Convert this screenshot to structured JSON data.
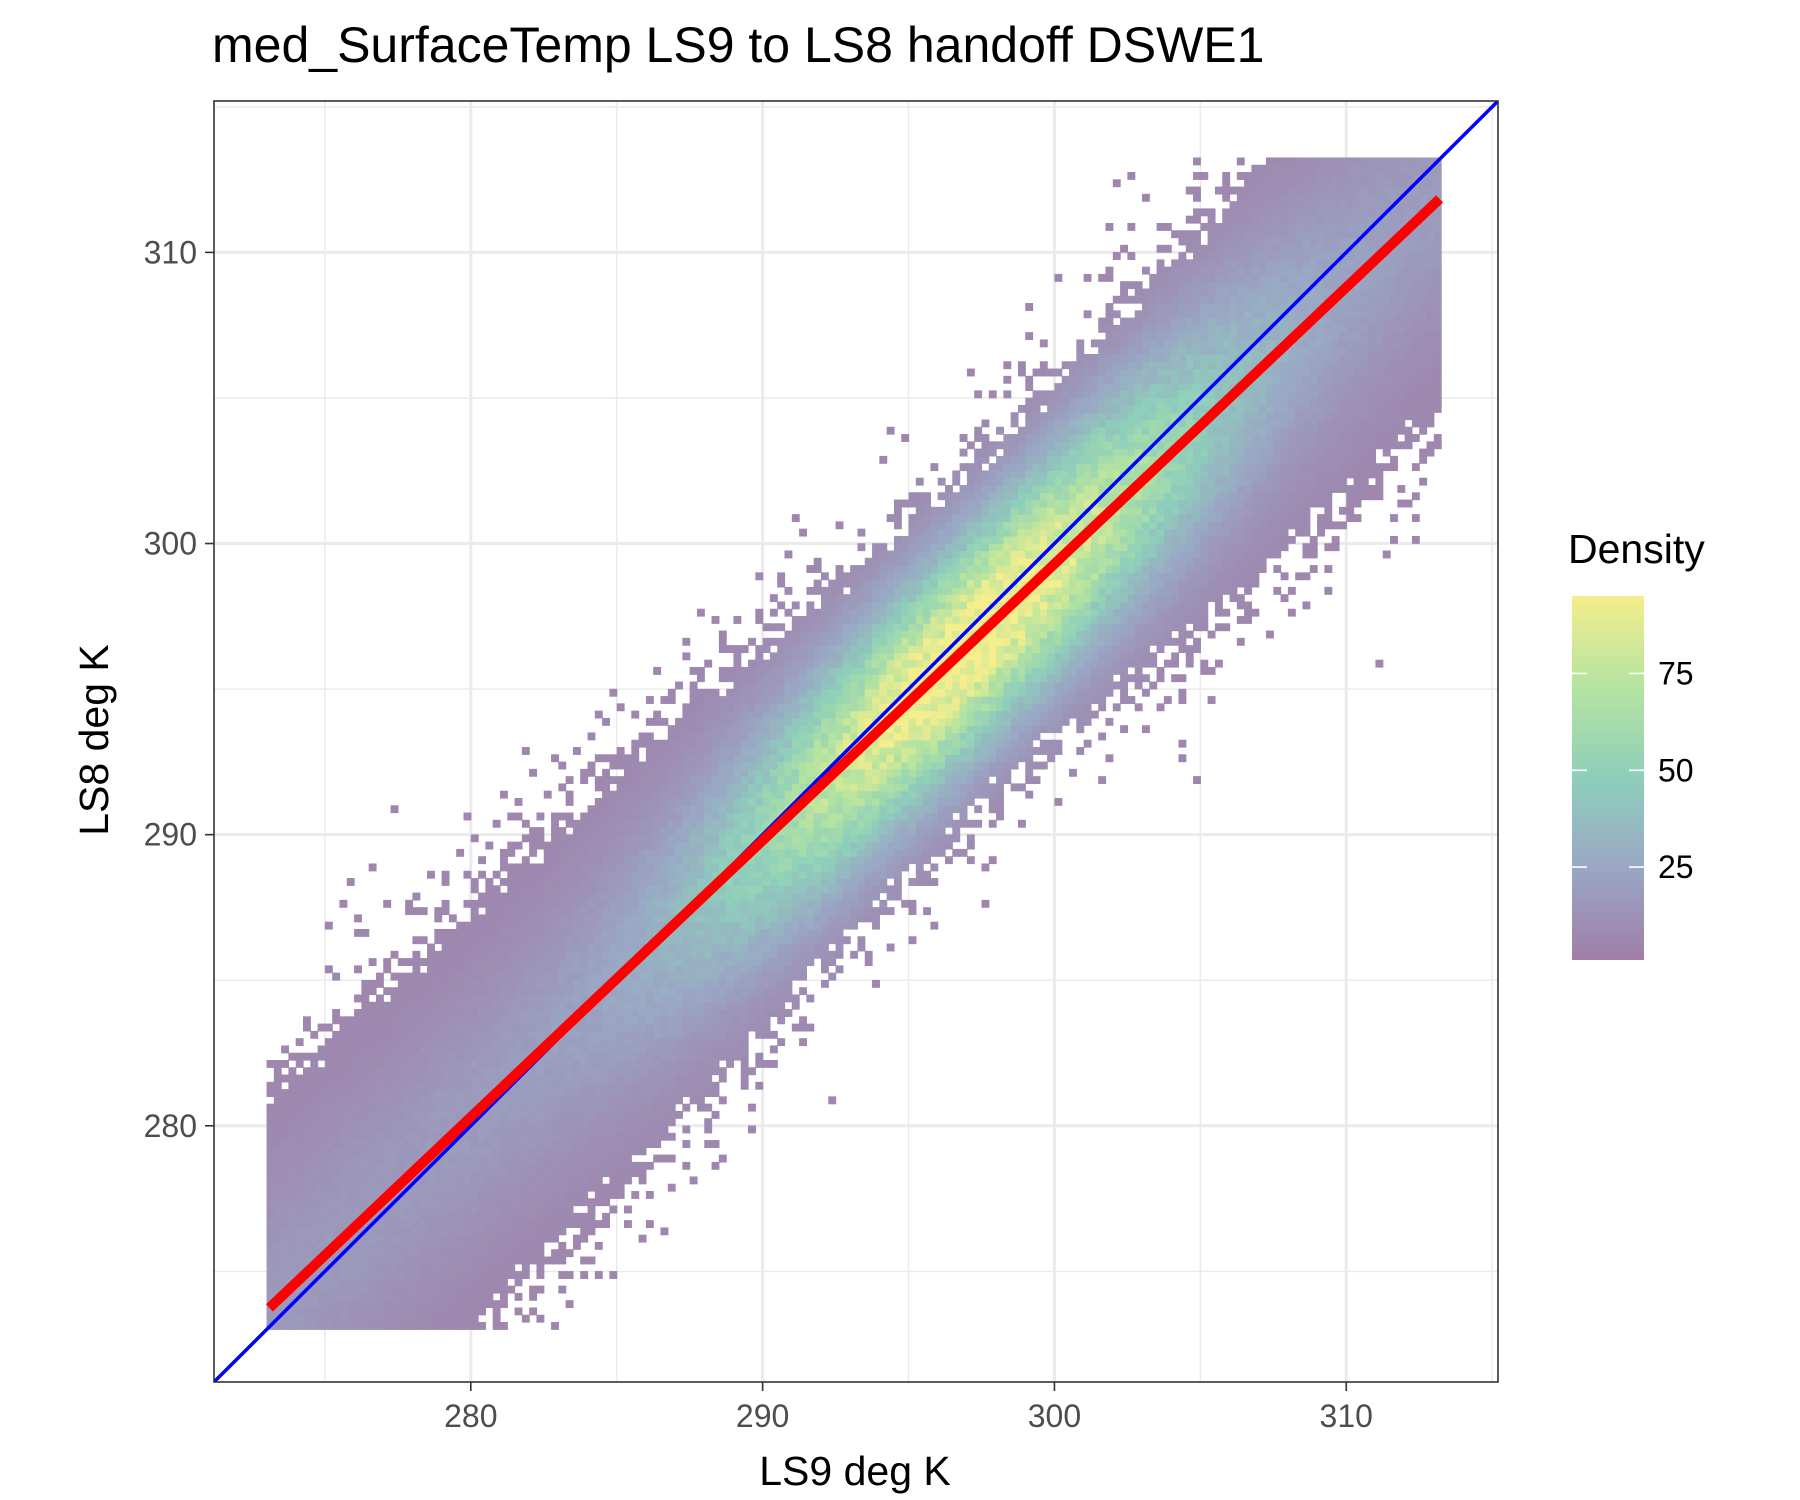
{
  "chart_data": {
    "type": "heatmap",
    "title": "med_SurfaceTemp LS9 to LS8 handoff DSWE1",
    "xlabel": "LS9 deg K",
    "ylabel": "LS8 deg K",
    "xlim": [
      271.2,
      315.2
    ],
    "ylim": [
      271.2,
      315.2
    ],
    "x_ticks": [
      280,
      290,
      300,
      310
    ],
    "y_ticks": [
      280,
      290,
      300,
      310
    ],
    "grid": true,
    "data_extent": {
      "x": [
        273,
        313.2
      ],
      "y": [
        273,
        313.2
      ]
    },
    "density_band": {
      "center_slope": 0.95,
      "center_intercept": 14.3,
      "peak_at_x": 297,
      "peak_density": 95
    },
    "lines": [
      {
        "kind": "one-to-one",
        "color": "#0000ff",
        "slope": 1.0,
        "intercept": 0.0
      },
      {
        "kind": "regression",
        "color": "#ff0000",
        "slope": 0.95,
        "intercept": 14.3,
        "x_range": [
          273.1,
          313.2
        ]
      }
    ],
    "legend": {
      "title": "Density",
      "placement": "right",
      "ticks": [
        25,
        50,
        75
      ],
      "range": [
        1,
        95
      ],
      "colors": [
        "#a07ea8",
        "#9aa6c4",
        "#8ecfbb",
        "#b5e3a0",
        "#f4ee8c"
      ]
    }
  }
}
